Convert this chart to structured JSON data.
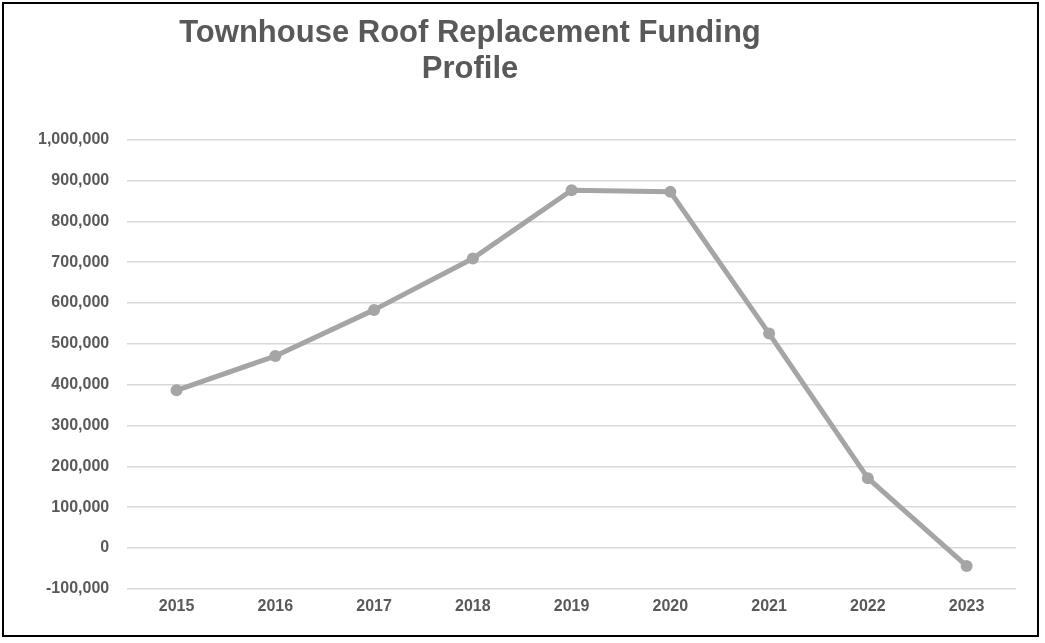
{
  "chart_data": {
    "type": "line",
    "title": "Townhouse Roof Replacement Funding Profile",
    "categories": [
      "2015",
      "2016",
      "2017",
      "2018",
      "2019",
      "2020",
      "2021",
      "2022",
      "2023"
    ],
    "series": [
      {
        "color": "#a5a5a5",
        "values": [
          386000,
          470000,
          583000,
          709000,
          876000,
          872000,
          525000,
          171000,
          -44000
        ]
      }
    ],
    "ylim": [
      -100000,
      1000000
    ],
    "yticks": [
      {
        "value": -100000,
        "label": "-100,000"
      },
      0,
      {
        "value": 100000,
        "label": "100,000"
      },
      {
        "value": 200000,
        "label": "200,000"
      },
      {
        "value": 300000,
        "label": "300,000"
      },
      {
        "value": 400000,
        "label": "400,000"
      },
      {
        "value": 500000,
        "label": "500,000"
      },
      {
        "value": 600000,
        "label": "600,000"
      },
      {
        "value": 700000,
        "label": "700,000"
      },
      {
        "value": 800000,
        "label": "800,000"
      },
      {
        "value": 900000,
        "label": "900,000"
      },
      {
        "value": 1000000,
        "label": "1,000,000"
      }
    ],
    "grid": "y",
    "legend": false,
    "marker": "circle",
    "line_style": "solid"
  }
}
